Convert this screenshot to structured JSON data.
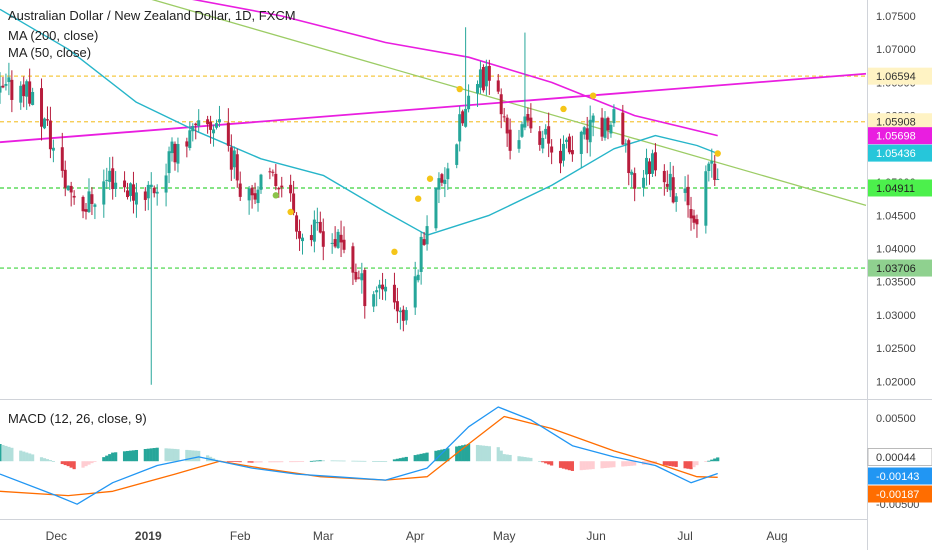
{
  "header": {
    "title": "Australian Dollar / New Zealand Dollar, 1D, FXCM",
    "indicator_ma200": "MA (200, close)",
    "indicator_ma50": "MA (50, close)"
  },
  "macd": {
    "label": "MACD (12, 26, close, 9)",
    "axis_ticks": [
      "0.00500",
      "0.00000",
      "-0.00500"
    ],
    "badges": [
      {
        "text": "0.00044",
        "bg": "#ffffff",
        "fg": "#333333",
        "border": "#aaaaaa"
      },
      {
        "text": "-0.00143",
        "bg": "#2196f3",
        "fg": "#ffffff"
      },
      {
        "text": "-0.00187",
        "bg": "#ff6d00",
        "fg": "#ffffff"
      }
    ]
  },
  "price_axis": {
    "ticks": [
      "1.07500",
      "1.07000",
      "1.06500",
      "1.06000",
      "1.05500",
      "1.05000",
      "1.04500",
      "1.04000",
      "1.03500",
      "1.03000",
      "1.02500",
      "1.02000"
    ],
    "badges": [
      {
        "text": "1.06594",
        "value": 1.06594,
        "bg": "#fff3c4",
        "fg": "#333333"
      },
      {
        "text": "1.05908",
        "value": 1.05908,
        "bg": "#fff3c4",
        "fg": "#333333"
      },
      {
        "text": "1.05698",
        "value": 1.05698,
        "bg": "#e91ee0",
        "fg": "#ffffff"
      },
      {
        "text": "1.05436",
        "value": 1.05436,
        "bg": "#26c6da",
        "fg": "#ffffff"
      },
      {
        "text": "1.04911",
        "value": 1.04911,
        "bg": "#4cf04c",
        "fg": "#222222"
      },
      {
        "text": "1.03706",
        "value": 1.03706,
        "bg": "#8fd18f",
        "fg": "#222222"
      }
    ]
  },
  "time_axis": {
    "labels": [
      "Dec",
      "2019",
      "Feb",
      "Mar",
      "Apr",
      "May",
      "Jun",
      "Jul",
      "Aug"
    ]
  },
  "colors": {
    "up": "#26a69a",
    "down": "#b71c3c",
    "ma50": "#26b5c9",
    "ma200": "#e91ee0",
    "trend_down": "#9ccc65",
    "trend_up": "#e91ee0",
    "level_yellow": "#f5c842",
    "level_green": "#3cd43c",
    "macd_line": "#2196f3",
    "signal_line": "#ff6d00",
    "hist_pos_strong": "#26a69a",
    "hist_pos_weak": "#b2dfdb",
    "hist_neg_strong": "#ef5350",
    "hist_neg_weak": "#ffcdd2",
    "marker_yellow": "#f5c518",
    "marker_green": "#8bc34a"
  },
  "chart_data": {
    "type": "candlestick",
    "title": "Australian Dollar / New Zealand Dollar, 1D, FXCM",
    "x_range": [
      "2018-11-12",
      "2019-08-31"
    ],
    "y_range": [
      1.0175,
      1.0765
    ],
    "horizontal_levels": [
      {
        "value": 1.06594,
        "style": "dashed",
        "color": "yellow"
      },
      {
        "value": 1.05908,
        "style": "dashed",
        "color": "yellow"
      },
      {
        "value": 1.04911,
        "style": "dashed",
        "color": "green"
      },
      {
        "value": 1.03706,
        "style": "dashed",
        "color": "green"
      }
    ],
    "trendlines": [
      {
        "name": "descending",
        "from": [
          "2018-12-23",
          1.0788
        ],
        "to": [
          "2019-08-31",
          1.0465
        ]
      },
      {
        "name": "ascending",
        "from": [
          "2018-11-12",
          1.056
        ],
        "to": [
          "2019-08-31",
          1.0663
        ]
      }
    ],
    "candle_anchors": [
      [
        "2018-11-12",
        1.063
      ],
      [
        "2018-11-20",
        1.065
      ],
      [
        "2018-11-28",
        1.058
      ],
      [
        "2018-12-03",
        1.0505
      ],
      [
        "2018-12-11",
        1.0465
      ],
      [
        "2018-12-19",
        1.051
      ],
      [
        "2018-12-27",
        1.0485
      ],
      [
        "2019-01-04",
        1.0495
      ],
      [
        "2019-01-11",
        1.056
      ],
      [
        "2019-01-18",
        1.0575
      ],
      [
        "2019-01-25",
        1.0595
      ],
      [
        "2019-02-01",
        1.05
      ],
      [
        "2019-02-08",
        1.049
      ],
      [
        "2019-02-15",
        1.051
      ],
      [
        "2019-02-22",
        1.042
      ],
      [
        "2019-03-01",
        1.0425
      ],
      [
        "2019-03-08",
        1.04
      ],
      [
        "2019-03-15",
        1.0335
      ],
      [
        "2019-03-22",
        1.035
      ],
      [
        "2019-03-29",
        1.029
      ],
      [
        "2019-04-05",
        1.045
      ],
      [
        "2019-04-12",
        1.053
      ],
      [
        "2019-04-19",
        1.062
      ],
      [
        "2019-04-26",
        1.067
      ],
      [
        "2019-05-03",
        1.056
      ],
      [
        "2019-05-10",
        1.059
      ],
      [
        "2019-05-17",
        1.0555
      ],
      [
        "2019-05-24",
        1.0545
      ],
      [
        "2019-05-31",
        1.058
      ],
      [
        "2019-06-07",
        1.059
      ],
      [
        "2019-06-14",
        1.05
      ],
      [
        "2019-06-21",
        1.054
      ],
      [
        "2019-06-28",
        1.048
      ],
      [
        "2019-07-05",
        1.0455
      ],
      [
        "2019-07-10",
        1.053
      ],
      [
        "2019-07-12",
        1.0491
      ]
    ],
    "ma50": [
      [
        "2018-11-12",
        1.076
      ],
      [
        "2018-12-05",
        1.07
      ],
      [
        "2018-12-28",
        1.062
      ],
      [
        "2019-01-18",
        1.0575
      ],
      [
        "2019-02-08",
        1.0535
      ],
      [
        "2019-03-01",
        1.051
      ],
      [
        "2019-03-22",
        1.0455
      ],
      [
        "2019-04-05",
        1.042
      ],
      [
        "2019-04-26",
        1.045
      ],
      [
        "2019-05-17",
        1.0495
      ],
      [
        "2019-06-07",
        1.055
      ],
      [
        "2019-06-21",
        1.057
      ],
      [
        "2019-07-05",
        1.0555
      ],
      [
        "2019-07-12",
        1.0543
      ]
    ],
    "ma200": [
      [
        "2019-01-10",
        1.078
      ],
      [
        "2019-02-15",
        1.075
      ],
      [
        "2019-03-22",
        1.071
      ],
      [
        "2019-04-19",
        1.0688
      ],
      [
        "2019-05-17",
        1.065
      ],
      [
        "2019-06-14",
        1.06
      ],
      [
        "2019-07-12",
        1.057
      ]
    ],
    "markers": [
      {
        "date": "2019-02-13",
        "value": 1.048,
        "color": "green"
      },
      {
        "date": "2019-02-18",
        "value": 1.0455,
        "color": "yellow"
      },
      {
        "date": "2019-03-25",
        "value": 1.0395,
        "color": "yellow"
      },
      {
        "date": "2019-04-02",
        "value": 1.0475,
        "color": "yellow"
      },
      {
        "date": "2019-04-06",
        "value": 1.0505,
        "color": "yellow"
      },
      {
        "date": "2019-04-16",
        "value": 1.064,
        "color": "yellow"
      },
      {
        "date": "2019-05-21",
        "value": 1.061,
        "color": "yellow"
      },
      {
        "date": "2019-05-31",
        "value": 1.063,
        "color": "yellow"
      },
      {
        "date": "2019-07-12",
        "value": 1.0543,
        "color": "yellow"
      }
    ],
    "macd": {
      "y_range": [
        -0.0066,
        0.007
      ],
      "macd_line": [
        [
          "2018-11-12",
          -0.0015
        ],
        [
          "2018-12-01",
          -0.004
        ],
        [
          "2018-12-08",
          -0.005
        ],
        [
          "2018-12-20",
          -0.0025
        ],
        [
          "2019-01-04",
          -0.0005
        ],
        [
          "2019-01-18",
          0.0005
        ],
        [
          "2019-02-05",
          -0.0008
        ],
        [
          "2019-02-20",
          -0.0015
        ],
        [
          "2019-03-05",
          -0.0018
        ],
        [
          "2019-03-22",
          -0.0022
        ],
        [
          "2019-04-05",
          -0.0008
        ],
        [
          "2019-04-19",
          0.004
        ],
        [
          "2019-04-29",
          0.0063
        ],
        [
          "2019-05-10",
          0.0048
        ],
        [
          "2019-05-24",
          0.0018
        ],
        [
          "2019-06-07",
          0.0005
        ],
        [
          "2019-06-21",
          -0.0005
        ],
        [
          "2019-07-03",
          -0.0025
        ],
        [
          "2019-07-12",
          -0.00143
        ]
      ],
      "signal_line": [
        [
          "2018-11-12",
          -0.0035
        ],
        [
          "2018-12-05",
          -0.004
        ],
        [
          "2018-12-20",
          -0.0035
        ],
        [
          "2019-01-10",
          -0.0015
        ],
        [
          "2019-01-25",
          0.0
        ],
        [
          "2019-02-08",
          -0.0008
        ],
        [
          "2019-02-28",
          -0.0018
        ],
        [
          "2019-03-22",
          -0.0022
        ],
        [
          "2019-04-05",
          -0.0018
        ],
        [
          "2019-04-19",
          0.002
        ],
        [
          "2019-05-01",
          0.0052
        ],
        [
          "2019-05-17",
          0.0038
        ],
        [
          "2019-06-07",
          0.0012
        ],
        [
          "2019-06-21",
          -0.0002
        ],
        [
          "2019-07-05",
          -0.0018
        ],
        [
          "2019-07-12",
          -0.00187
        ]
      ]
    }
  }
}
